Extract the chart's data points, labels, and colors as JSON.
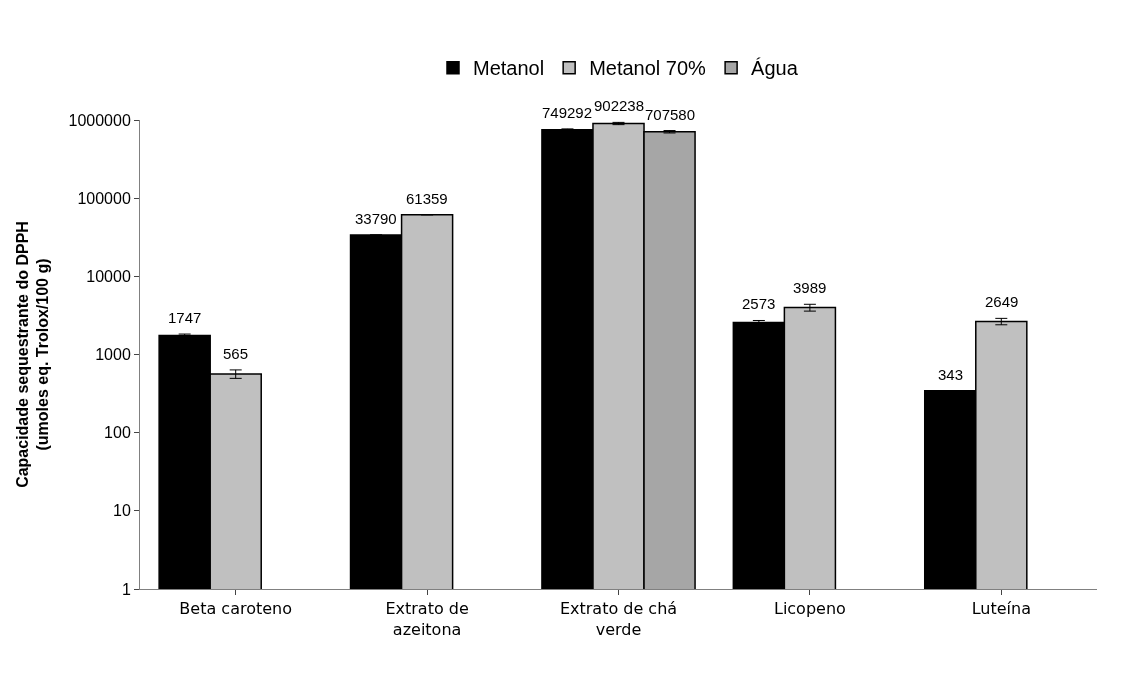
{
  "chart_data": {
    "type": "bar",
    "ylabel": "Capacidade sequestrante do DPPH\n(umoles eq. Trolox/100 g)",
    "categories": [
      "Beta caroteno",
      "Extrato de\nazeitona",
      "Extrato de chá\nverde",
      "Licopeno",
      "Luteína"
    ],
    "series": [
      {
        "name": "Metanol",
        "color": "#000000",
        "values": [
          1747,
          33790,
          749292,
          2573,
          343
        ],
        "errors": [
          80,
          null,
          20000,
          150,
          null
        ]
      },
      {
        "name": "Metanol 70%",
        "color": "#c0c0c0",
        "values": [
          565,
          61359,
          902238,
          3989,
          2649
        ],
        "errors": [
          70,
          null,
          30000,
          400,
          250
        ]
      },
      {
        "name": "Água",
        "color": "#a6a6a6",
        "values": [
          null,
          null,
          707580,
          null,
          null
        ],
        "errors": [
          null,
          null,
          25000,
          null,
          null
        ]
      }
    ],
    "log": true,
    "ylim": [
      1,
      1000000
    ],
    "yticks": [
      1,
      10,
      100,
      1000,
      10000,
      100000,
      1000000
    ],
    "data_labels": true,
    "legend": "top"
  }
}
